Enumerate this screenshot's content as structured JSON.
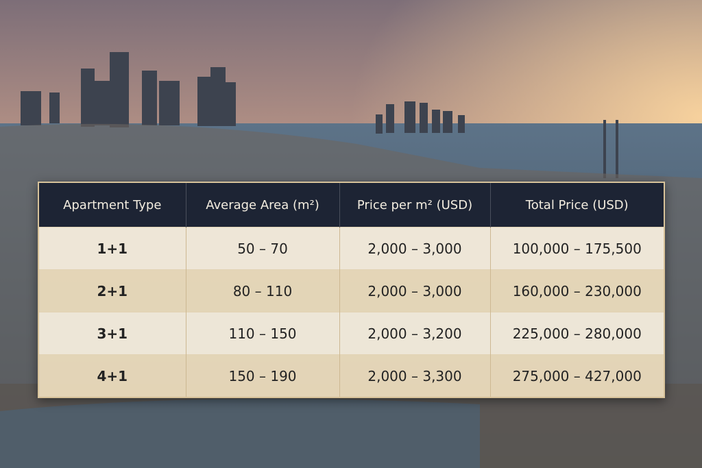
{
  "table": {
    "header": [
      "Apartment Type",
      "Average Area (m²)",
      "Price per m² (USD)",
      "Total Price (USD)"
    ],
    "rows": [
      [
        "1+1",
        "50 – 70",
        "2,000 – 3,000",
        "100,000 – 175,500"
      ],
      [
        "2+1",
        "80 – 110",
        "2,000 – 3,000",
        "160,000 – 230,000"
      ],
      [
        "3+1",
        "110 – 150",
        "2,000 – 3,200",
        "225,000 – 280,000"
      ],
      [
        "4+1",
        "150 – 190",
        "2,000 – 3,300",
        "275,000 – 427,000"
      ]
    ]
  }
}
